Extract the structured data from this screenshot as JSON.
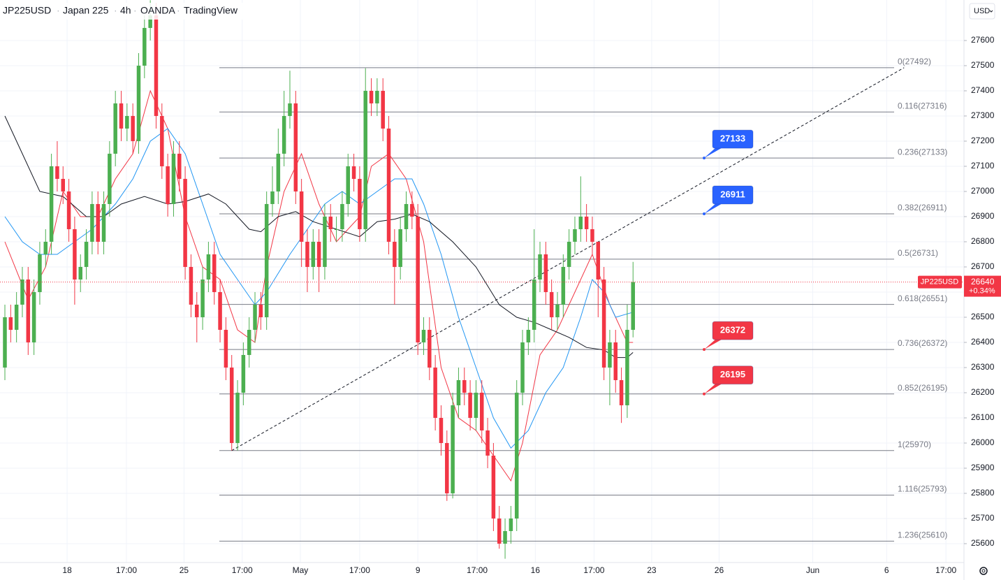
{
  "chart_data": {
    "type": "candlestick",
    "symbol": "JP225USD",
    "title": "Japan 225",
    "interval": "4h",
    "broker": "OANDA",
    "source": "TradingView",
    "currency": "USD",
    "up_color": "#4caf50",
    "down_color": "#f23645",
    "ylim": [
      25525,
      27761
    ],
    "yticks": [
      25600,
      25700,
      25800,
      25900,
      26000,
      26100,
      26200,
      26300,
      26400,
      26500,
      26600,
      26700,
      26800,
      26900,
      27000,
      27100,
      27200,
      27300,
      27400,
      27500,
      27600
    ],
    "xlim": [
      -0.84,
      164.9
    ],
    "xticks": [
      {
        "value": 10.7,
        "label": "18"
      },
      {
        "value": 20.9,
        "label": "17:00"
      },
      {
        "value": 30.8,
        "label": "25"
      },
      {
        "value": 40.8,
        "label": "17:00"
      },
      {
        "value": 50.8,
        "label": "May"
      },
      {
        "value": 61,
        "label": "17:00"
      },
      {
        "value": 71,
        "label": "9"
      },
      {
        "value": 81.2,
        "label": "17:00"
      },
      {
        "value": 91.2,
        "label": "16"
      },
      {
        "value": 101.3,
        "label": "17:00"
      },
      {
        "value": 111.2,
        "label": "23"
      },
      {
        "value": 122.8,
        "label": "26"
      },
      {
        "value": 138.9,
        "label": "Jun"
      },
      {
        "value": 151.6,
        "label": "6"
      },
      {
        "value": 161.8,
        "label": "17:00"
      }
    ],
    "candles": {
      "open": [
        26300,
        26500,
        26450,
        26550,
        26650,
        26400,
        26600,
        26750,
        26800,
        27100,
        27050,
        27000,
        26850,
        26650,
        26700,
        26800,
        26950,
        26800,
        26950,
        27150,
        27350,
        27250,
        27300,
        27200,
        27500,
        27650,
        27700,
        27300,
        27100,
        26950,
        27150,
        27050,
        26700,
        26550,
        26500,
        26650,
        26750,
        26600,
        26450,
        26300,
        26000,
        26200,
        26350,
        26450,
        26550,
        26500,
        26950,
        27000,
        27150,
        27300,
        27350,
        27000,
        26800,
        26700,
        26800,
        26700,
        26900,
        26850,
        26850,
        26950,
        27100,
        27050,
        26850,
        27400,
        27350,
        27400,
        27250,
        26800,
        26700,
        26850,
        26950,
        26900,
        26400,
        26450,
        26300,
        26100,
        26000,
        25800,
        26150,
        26250,
        26200,
        26100,
        26200,
        26050,
        25950,
        25700,
        25600,
        25650,
        25700,
        26200,
        26400,
        26450,
        26650,
        26750,
        26600,
        26500,
        26550,
        26700,
        26800,
        26850,
        26900,
        26850,
        26800,
        26650,
        26300,
        26400,
        26250,
        26150,
        26450
      ],
      "high": [
        26550,
        26550,
        26600,
        26700,
        26700,
        26650,
        26800,
        26850,
        27150,
        27200,
        27100,
        27050,
        26900,
        26750,
        26850,
        27000,
        27000,
        27000,
        27200,
        27400,
        27400,
        27350,
        27350,
        27550,
        27700,
        27760,
        27750,
        27350,
        27150,
        27200,
        27200,
        27100,
        26750,
        26600,
        26700,
        26800,
        26800,
        26650,
        26500,
        26350,
        26250,
        26400,
        26500,
        26600,
        26600,
        27000,
        27100,
        27250,
        27400,
        27480,
        27400,
        27050,
        26850,
        26850,
        26850,
        26950,
        26950,
        26900,
        27000,
        27150,
        27150,
        27100,
        27490,
        27450,
        27450,
        27450,
        27300,
        26850,
        26900,
        27000,
        27000,
        26950,
        26500,
        26500,
        26350,
        26150,
        26050,
        26200,
        26300,
        26300,
        26250,
        26250,
        26250,
        26100,
        26000,
        25750,
        25700,
        25750,
        26250,
        26450,
        26500,
        26850,
        26800,
        26800,
        26650,
        26600,
        26750,
        26850,
        26900,
        27060,
        26950,
        26900,
        26700,
        26700,
        26450,
        26450,
        26300,
        26550,
        26720
      ],
      "low": [
        26250,
        26400,
        26400,
        26500,
        26350,
        26350,
        26550,
        26700,
        26750,
        27000,
        26950,
        26800,
        26550,
        26600,
        26650,
        26750,
        26750,
        26750,
        26900,
        27100,
        27200,
        27200,
        27150,
        27150,
        27450,
        27600,
        27250,
        27050,
        26900,
        26900,
        27000,
        26650,
        26500,
        26400,
        26450,
        26600,
        26550,
        26400,
        26250,
        25970,
        25970,
        26150,
        26300,
        26400,
        26450,
        26450,
        26900,
        26950,
        27100,
        27250,
        26950,
        26700,
        26600,
        26650,
        26600,
        26650,
        26800,
        26800,
        26800,
        26900,
        27000,
        26800,
        26800,
        27300,
        27300,
        27200,
        26750,
        26550,
        26650,
        26800,
        26850,
        26350,
        26350,
        26250,
        26050,
        25950,
        25770,
        25780,
        26100,
        26150,
        26050,
        26050,
        26000,
        25900,
        25650,
        25580,
        25540,
        25600,
        25650,
        26150,
        26350,
        26400,
        26600,
        26550,
        26450,
        26450,
        26500,
        26650,
        26750,
        26800,
        26800,
        26750,
        26500,
        26250,
        26150,
        26200,
        26080,
        26100,
        26420
      ],
      "close": [
        26500,
        26450,
        26550,
        26650,
        26400,
        26600,
        26750,
        26800,
        27100,
        27050,
        27000,
        26850,
        26650,
        26700,
        26800,
        26950,
        26800,
        26950,
        27150,
        27350,
        27250,
        27300,
        27200,
        27500,
        27650,
        27700,
        27300,
        27100,
        26950,
        27150,
        27050,
        26700,
        26550,
        26500,
        26650,
        26750,
        26600,
        26450,
        26300,
        26000,
        26200,
        26350,
        26450,
        26550,
        26500,
        26950,
        27000,
        27150,
        27300,
        27350,
        27000,
        26800,
        26700,
        26800,
        26700,
        26900,
        26850,
        26850,
        26950,
        27100,
        27050,
        26850,
        27400,
        27350,
        27400,
        27250,
        26800,
        26700,
        26850,
        26950,
        26900,
        26400,
        26450,
        26300,
        26100,
        26000,
        25800,
        26150,
        26250,
        26200,
        26100,
        26200,
        26050,
        25950,
        25700,
        25600,
        25650,
        25700,
        26200,
        26400,
        26450,
        26650,
        26750,
        26600,
        26500,
        26550,
        26700,
        26800,
        26850,
        26900,
        26850,
        26800,
        26650,
        26300,
        26400,
        26250,
        26150,
        26450,
        26640
      ]
    },
    "series": [
      {
        "color": "#f23645",
        "x": [
          0,
          4,
          7,
          10,
          13,
          16,
          19,
          22,
          25,
          28,
          31,
          34,
          37,
          40,
          43,
          45,
          48,
          51,
          54,
          57,
          61,
          63,
          66,
          69,
          72,
          75,
          78,
          81,
          84,
          87,
          89,
          92,
          95,
          98,
          101,
          104,
          107,
          108
        ],
        "values": [
          26800,
          26570,
          26700,
          27000,
          26900,
          26900,
          27050,
          27150,
          27400,
          27250,
          26900,
          26700,
          26650,
          26450,
          26400,
          26700,
          27000,
          27150,
          26950,
          26800,
          26900,
          27100,
          27150,
          27050,
          26800,
          26300,
          26100,
          26050,
          25950,
          25850,
          26000,
          26350,
          26450,
          26600,
          26750,
          26550,
          26400,
          26400
        ]
      },
      {
        "color": "#2196f3",
        "x": [
          0,
          3,
          6,
          9,
          12,
          15,
          19,
          22,
          25,
          28,
          31,
          34,
          37,
          40,
          43,
          45,
          49,
          52,
          55,
          58,
          61,
          64,
          67,
          70,
          72,
          75,
          78,
          81,
          84,
          87,
          90,
          93,
          96,
          99,
          101,
          103,
          105,
          108
        ],
        "values": [
          26900,
          26800,
          26750,
          26750,
          26800,
          26850,
          26950,
          27050,
          27200,
          27250,
          27150,
          26950,
          26750,
          26650,
          26550,
          26600,
          26750,
          26850,
          26950,
          27000,
          26950,
          27000,
          27050,
          27050,
          26950,
          26750,
          26500,
          26300,
          26100,
          25980,
          26050,
          26200,
          26300,
          26500,
          26650,
          26600,
          26500,
          26520
        ]
      },
      {
        "color": "#131722",
        "x": [
          0,
          3,
          6,
          10,
          14,
          17,
          20,
          24,
          28,
          31,
          35,
          38,
          42,
          44,
          47,
          50,
          53,
          57,
          61,
          64,
          67,
          70,
          73,
          77,
          81,
          85,
          88,
          91,
          94,
          97,
          100,
          103,
          105,
          107,
          108
        ],
        "values": [
          27300,
          27150,
          27000,
          26980,
          26900,
          26900,
          26950,
          26980,
          26950,
          26960,
          26990,
          26950,
          26850,
          26840,
          26900,
          26920,
          26880,
          26850,
          26820,
          26880,
          26890,
          26910,
          26880,
          26800,
          26700,
          26550,
          26500,
          26480,
          26450,
          26420,
          26380,
          26370,
          26340,
          26340,
          26360
        ]
      }
    ],
    "trendline": {
      "x": [
        39,
        154.6
      ],
      "values": [
        25970,
        27492
      ]
    },
    "fib_levels": [
      {
        "label": "0(27492)",
        "value": 27492
      },
      {
        "label": "0.116(27316)",
        "value": 27316
      },
      {
        "label": "0.236(27133)",
        "value": 27133
      },
      {
        "label": "0.382(26911)",
        "value": 26911
      },
      {
        "label": "0.5(26731)",
        "value": 26731
      },
      {
        "label": "0.618(26551)",
        "value": 26551
      },
      {
        "label": "0.736(26372)",
        "value": 26372
      },
      {
        "label": "0.852(26195)",
        "value": 26195
      },
      {
        "label": "1(25970)",
        "value": 25970
      },
      {
        "label": "1.116(25793)",
        "value": 25793
      },
      {
        "label": "1.236(25610)",
        "value": 25610
      }
    ],
    "callouts": [
      {
        "value": 27133,
        "color": "#2962ff"
      },
      {
        "value": 26911,
        "color": "#2962ff"
      },
      {
        "value": 26372,
        "color": "#f23645"
      },
      {
        "value": 26195,
        "color": "#f23645"
      }
    ],
    "last": {
      "symbol": "JP225USD",
      "value": 26640,
      "change": "+0.34%"
    }
  }
}
